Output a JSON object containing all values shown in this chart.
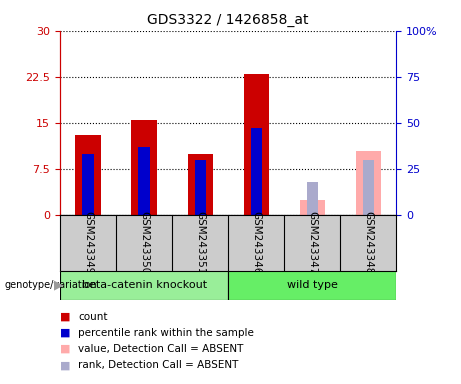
{
  "title": "GDS3322 / 1426858_at",
  "samples": [
    "GSM243349",
    "GSM243350",
    "GSM243351",
    "GSM243346",
    "GSM243347",
    "GSM243348"
  ],
  "red_bars": [
    13.0,
    15.5,
    10.0,
    23.0,
    null,
    null
  ],
  "blue_bars": [
    33.0,
    37.0,
    30.0,
    47.0,
    null,
    null
  ],
  "pink_bars": [
    null,
    null,
    null,
    null,
    2.5,
    10.5
  ],
  "light_blue_bars": [
    null,
    null,
    null,
    null,
    18.0,
    30.0
  ],
  "ylim_left": [
    0,
    30
  ],
  "ylim_right": [
    0,
    100
  ],
  "yticks_left": [
    0,
    7.5,
    15,
    22.5,
    30
  ],
  "yticks_right": [
    0,
    25,
    50,
    75,
    100
  ],
  "ytick_labels_left": [
    "0",
    "7.5",
    "15",
    "22.5",
    "30"
  ],
  "ytick_labels_right": [
    "0",
    "25",
    "50",
    "75",
    "100%"
  ],
  "color_red": "#cc0000",
  "color_blue": "#0000cc",
  "color_pink": "#ffaaaa",
  "color_light_blue": "#aaaacc",
  "color_green_light": "#99ee99",
  "color_green_dark": "#55dd55",
  "color_sample_bg": "#cccccc",
  "bar_width": 0.45,
  "blue_bar_width": 0.2,
  "group_info": [
    {
      "name": "beta-catenin knockout",
      "start": 0,
      "end": 2,
      "color": "#99ee99"
    },
    {
      "name": "wild type",
      "start": 3,
      "end": 5,
      "color": "#66ee66"
    }
  ],
  "legend_items": [
    {
      "color": "#cc0000",
      "label": "count"
    },
    {
      "color": "#0000cc",
      "label": "percentile rank within the sample"
    },
    {
      "color": "#ffaaaa",
      "label": "value, Detection Call = ABSENT"
    },
    {
      "color": "#aaaacc",
      "label": "rank, Detection Call = ABSENT"
    }
  ]
}
